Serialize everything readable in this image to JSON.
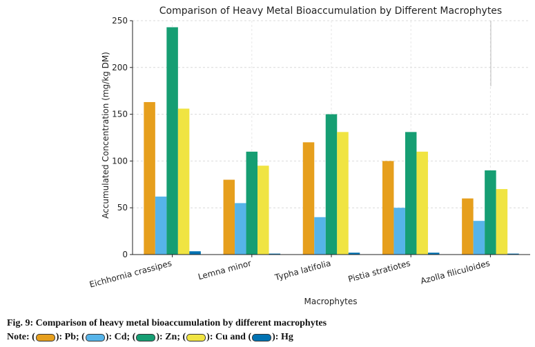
{
  "chart_data": {
    "type": "bar",
    "title": "Comparison of Heavy Metal Bioaccumulation by Different Macrophytes",
    "xlabel": "Macrophytes",
    "ylabel": "Accumulated Concentration (mg/kg DM)",
    "ylim": [
      0,
      250
    ],
    "yticks": [
      0,
      50,
      100,
      150,
      200,
      250
    ],
    "grid": true,
    "categories": [
      "Eichhornia crassipes",
      "Lemna minor",
      "Typha latifolia",
      "Pistia stratiotes",
      "Azolla filiculoides"
    ],
    "series": [
      {
        "name": "Pb",
        "color": "#E69F1D",
        "values": [
          163,
          80,
          120,
          100,
          60
        ]
      },
      {
        "name": "Cd",
        "color": "#56B4E9",
        "values": [
          62,
          55,
          40,
          50,
          36
        ]
      },
      {
        "name": "Zn",
        "color": "#169E73",
        "values": [
          243,
          110,
          150,
          131,
          90
        ]
      },
      {
        "name": "Cu",
        "color": "#F0E442",
        "values": [
          156,
          95,
          131,
          110,
          70
        ]
      },
      {
        "name": "Hg",
        "color": "#0072B2",
        "values": [
          3.5,
          1,
          2,
          2,
          1
        ]
      }
    ]
  },
  "caption": {
    "title": "Fig. 9: Comparison of heavy metal bioaccumulation by different macrophytes",
    "note_prefix": "Note:",
    "items": [
      {
        "label": "): Pb; (",
        "color": "#E69F1D"
      },
      {
        "label": "): Cd; (",
        "color": "#56B4E9"
      },
      {
        "label": "): Zn; (",
        "color": "#169E73"
      },
      {
        "label": "): Cu and (",
        "color": "#F0E442"
      },
      {
        "label": "): Hg",
        "color": "#0072B2"
      }
    ]
  }
}
